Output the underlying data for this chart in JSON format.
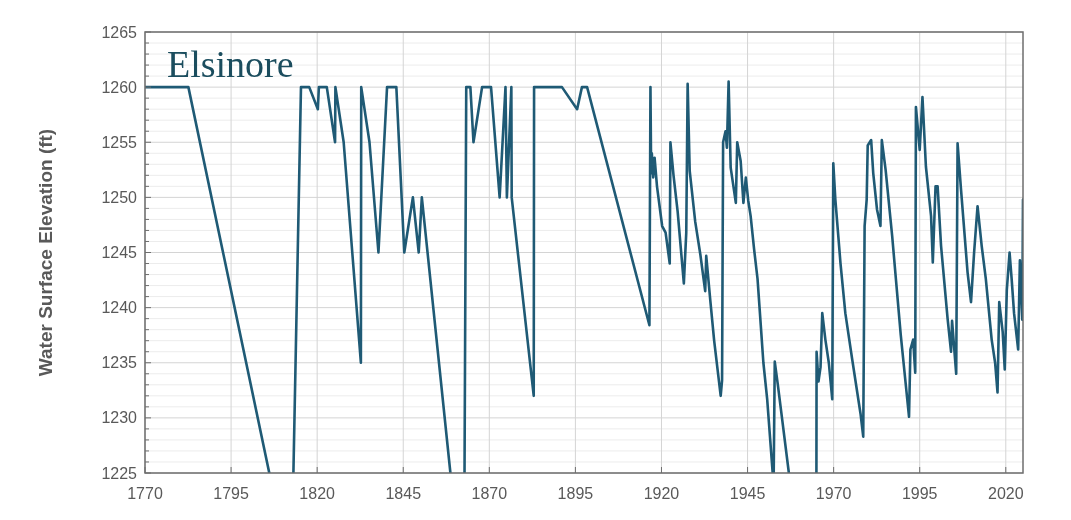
{
  "chart_data": {
    "type": "line",
    "title": "Elsinore",
    "ylabel": "Water Surface Elevation (ft)",
    "xlim": [
      1770,
      2025
    ],
    "xticks": [
      1770,
      1795,
      1820,
      1845,
      1870,
      1895,
      1920,
      1945,
      1970,
      1995,
      2020
    ],
    "ylim": [
      1225,
      1265
    ],
    "yticks": [
      1225,
      {
        "value": 1226,
        "label": null
      },
      {
        "value": 1227,
        "label": null
      },
      {
        "value": 1228,
        "label": null
      },
      {
        "value": 1229,
        "label": null
      },
      1230,
      {
        "value": 1231,
        "label": null
      },
      {
        "value": 1232,
        "label": null
      },
      {
        "value": 1233,
        "label": null
      },
      {
        "value": 1234,
        "label": null
      },
      1235,
      {
        "value": 1236,
        "label": null
      },
      {
        "value": 1237,
        "label": null
      },
      {
        "value": 1238,
        "label": null
      },
      {
        "value": 1239,
        "label": null
      },
      1240,
      {
        "value": 1241,
        "label": null
      },
      {
        "value": 1242,
        "label": null
      },
      {
        "value": 1243,
        "label": null
      },
      {
        "value": 1244,
        "label": null
      },
      1245,
      {
        "value": 1246,
        "label": null
      },
      {
        "value": 1247,
        "label": null
      },
      {
        "value": 1248,
        "label": null
      },
      {
        "value": 1249,
        "label": null
      },
      1250,
      {
        "value": 1251,
        "label": null
      },
      {
        "value": 1252,
        "label": null
      },
      {
        "value": 1253,
        "label": null
      },
      {
        "value": 1254,
        "label": null
      },
      1255,
      {
        "value": 1256,
        "label": null
      },
      {
        "value": 1257,
        "label": null
      },
      {
        "value": 1258,
        "label": null
      },
      {
        "value": 1259,
        "label": null
      },
      1260,
      {
        "value": 1261,
        "label": null
      },
      {
        "value": 1262,
        "label": null
      },
      {
        "value": 1263,
        "label": null
      },
      {
        "value": 1264,
        "label": null
      },
      1265
    ],
    "grid": true,
    "line_style": "solid",
    "series": [
      {
        "color": "#1f5a75",
        "x": [
          1770,
          1782.6,
          1806.1,
          1810,
          1813.1,
          1815.3,
          1817.7,
          1820.2,
          1820.5,
          1822.8,
          1825.2,
          1825.3,
          1827.7,
          1832.7,
          1832.8,
          1835.2,
          1837.8,
          1840.3,
          1843,
          1845.3,
          1847.8,
          1849.5,
          1850.4,
          1858.7,
          1861,
          1862.8,
          1863.3,
          1864.5,
          1865.4,
          1867.9,
          1870.5,
          1873,
          1874.7,
          1875.1,
          1876.4,
          1876.5,
          1882.9,
          1883,
          1891.1,
          1895.5,
          1896.9,
          1898.4,
          1916.5,
          1916.8,
          1917,
          1917.2,
          1917.6,
          1918,
          1918.7,
          1920.2,
          1921.2,
          1922.4,
          1922.6,
          1923.5,
          1924.7,
          1926.5,
          1927.2,
          1927.6,
          1928.2,
          1929.8,
          1931.3,
          1932.7,
          1933,
          1934.2,
          1935.3,
          1937.2,
          1937.6,
          1937.9,
          1938.6,
          1939,
          1939.5,
          1940.1,
          1941.6,
          1942,
          1943,
          1943.8,
          1944.5,
          1945.2,
          1945.9,
          1946.9,
          1947.9,
          1949.6,
          1950.7,
          1952.3,
          1952.45,
          1952.6,
          1952.9,
          1953.8,
          1954.6,
          1957,
          1961,
          1965,
          1965.05,
          1965.6,
          1966.2,
          1966.7,
          1967.6,
          1968.6,
          1969.6,
          1969.9,
          1970.5,
          1972,
          1973.4,
          1975.4,
          1977.8,
          1978.6,
          1979,
          1979.6,
          1979.9,
          1980.9,
          1981.5,
          1982.6,
          1983.6,
          1984,
          1985.1,
          1987,
          1989.5,
          1991.9,
          1992.3,
          1993.1,
          1993.7,
          1993.9,
          1995,
          1995.8,
          1996.8,
          1998.3,
          1998.8,
          1999.6,
          2000.2,
          2001.2,
          2003.1,
          2004.1,
          2004.4,
          2005.6,
          2006,
          2007,
          2008.9,
          2009.9,
          2010.8,
          2011.8,
          2013,
          2014.2,
          2015.9,
          2016.9,
          2017.6,
          2018.1,
          2019.1,
          2019.7,
          2020.3,
          2021.1,
          2021.7,
          2022.4,
          2023.6,
          2024.1,
          2024.8,
          2025
        ],
        "values": [
          1260,
          1260,
          1225,
          null,
          1225,
          1260,
          1260,
          1258,
          1260,
          1260,
          1255,
          1260,
          1255,
          1235,
          1260,
          1255,
          1245,
          1260,
          1260,
          1245,
          1250,
          1245,
          1250,
          1225,
          null,
          1225,
          1260,
          1260,
          1255,
          1260,
          1260,
          1250,
          1260,
          1250,
          1260,
          1250,
          1232,
          1260,
          1260,
          1258,
          1260,
          1260,
          1238.4,
          1260,
          1252.2,
          1254,
          1251.8,
          1253.6,
          1251,
          1247.4,
          1246.8,
          1244,
          1255,
          1252,
          1248.7,
          1242.2,
          1246.8,
          1260.3,
          1252.4,
          1247.8,
          1244.8,
          1241.5,
          1244.7,
          1240.6,
          1237,
          1232,
          1233.4,
          1255,
          1256,
          1254.5,
          1260.5,
          1252.7,
          1249.5,
          1255,
          1253.3,
          1249.5,
          1251.8,
          1249.7,
          1248.3,
          1245.3,
          1242.6,
          1235,
          1231.7,
          1225,
          null,
          1225,
          1235.1,
          1233,
          1231,
          1225,
          null,
          1225,
          1236,
          1233.3,
          1234.6,
          1239.5,
          1237.1,
          1235,
          1231.7,
          1253.1,
          1249.8,
          1244,
          1239.5,
          1235.3,
          1230.4,
          1228.3,
          1247.4,
          1249.8,
          1254.7,
          1255.2,
          1252.2,
          1248.9,
          1247.4,
          1255.2,
          1252.5,
          1246.5,
          1237.5,
          1230.1,
          1236.2,
          1237.1,
          1234.1,
          1258.2,
          1254.3,
          1259.1,
          1252.8,
          1248.3,
          1244.1,
          1251,
          1251,
          1245.6,
          1239,
          1236,
          1238.8,
          1234,
          1254.9,
          1250.7,
          1243.2,
          1240.5,
          1245,
          1249.2,
          1245.6,
          1242.6,
          1237.1,
          1235,
          1232.3,
          1240.5,
          1237.8,
          1234.4,
          1241.6,
          1245,
          1242.6,
          1239.5,
          1236.2,
          1244.3,
          1238.9,
          1249.8
        ]
      }
    ]
  }
}
